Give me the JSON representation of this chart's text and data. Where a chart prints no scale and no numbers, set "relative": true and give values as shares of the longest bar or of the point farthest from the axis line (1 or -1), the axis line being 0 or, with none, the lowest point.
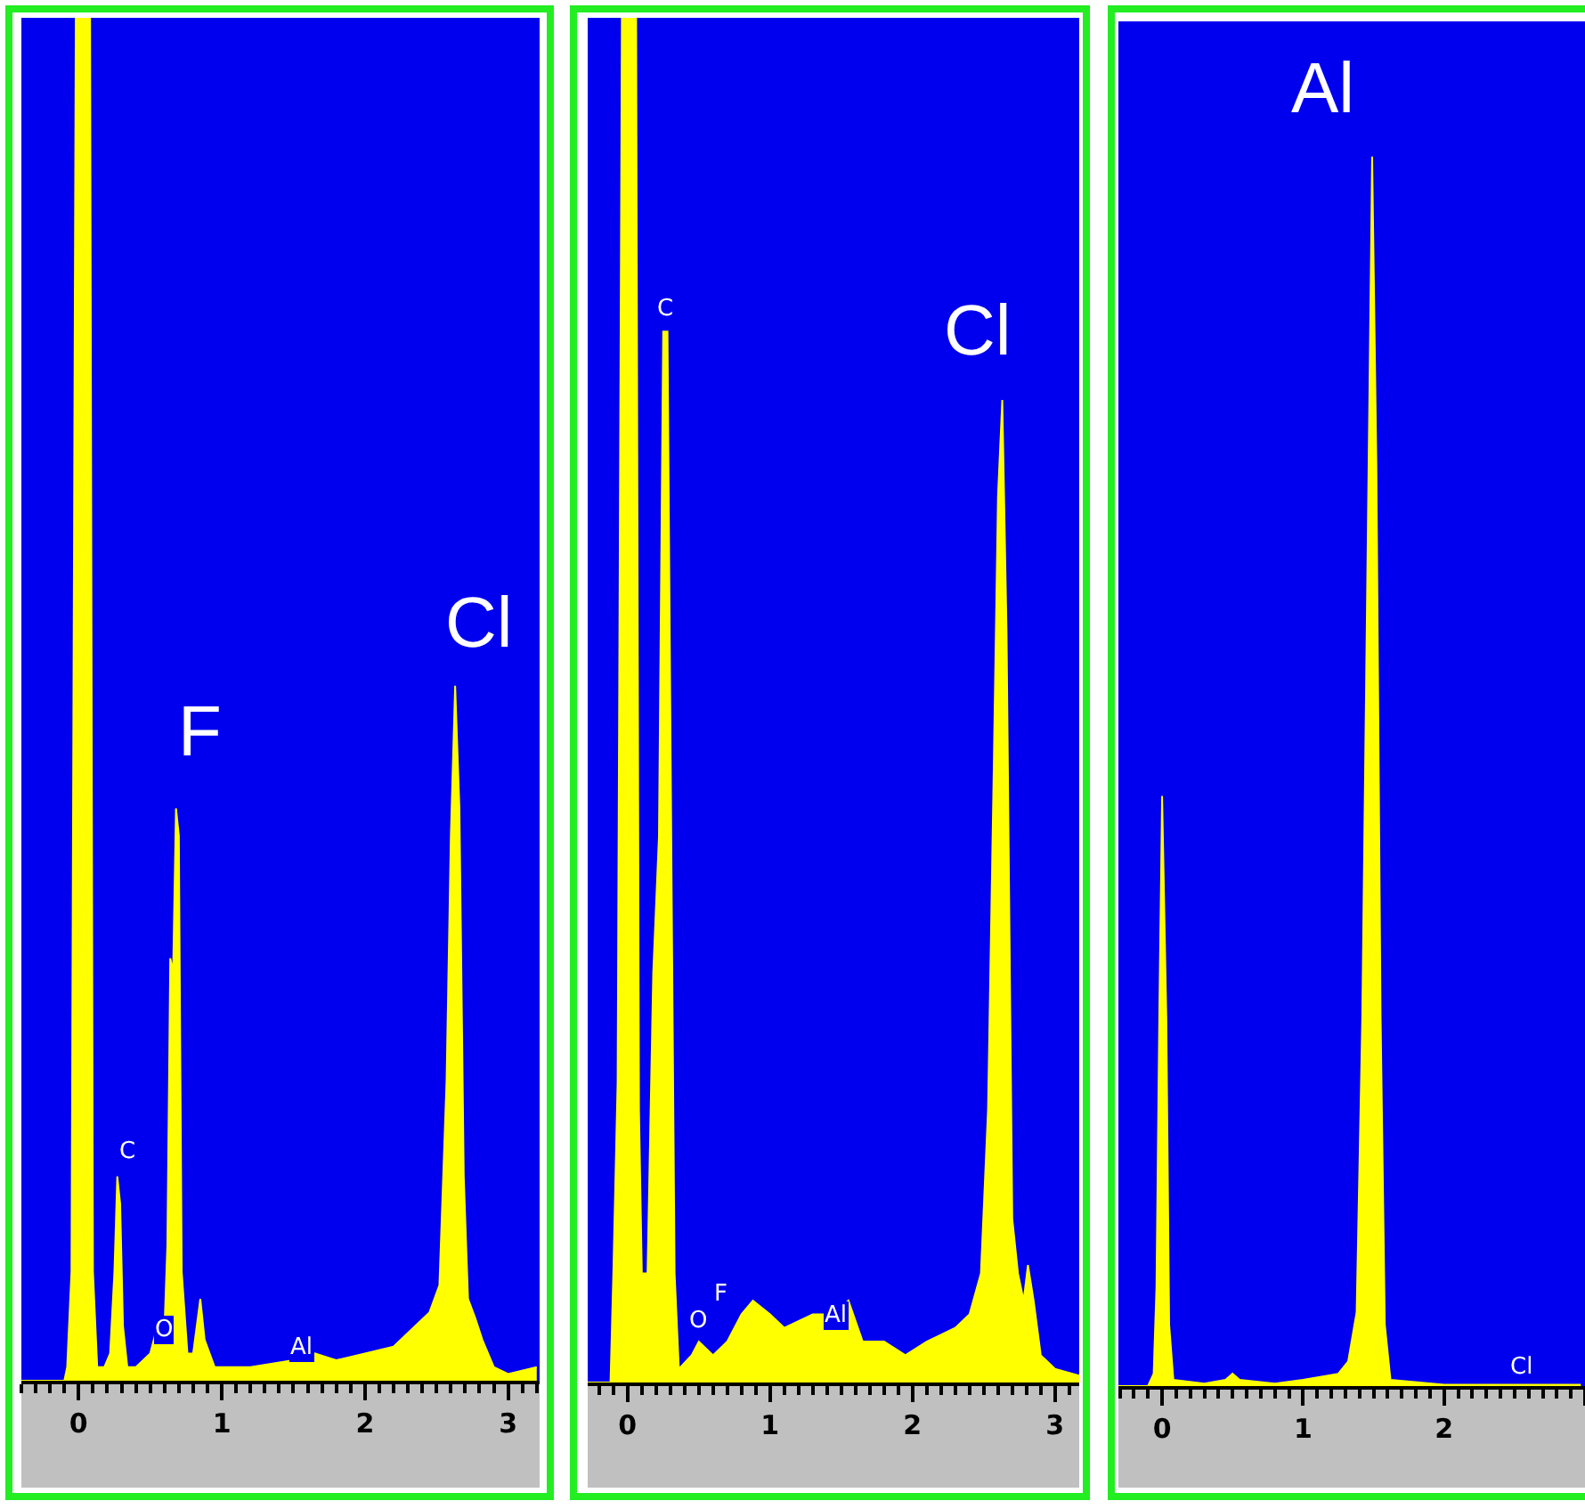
{
  "chart_data": [
    {
      "type": "area",
      "relative": true,
      "x": [
        -0.4,
        -0.1,
        -0.08,
        -0.05,
        -0.02,
        0.08,
        0.1,
        0.13,
        0.18,
        0.22,
        0.25,
        0.27,
        0.29,
        0.31,
        0.34,
        0.4,
        0.5,
        0.55,
        0.6,
        0.62,
        0.64,
        0.66,
        0.68,
        0.7,
        0.72,
        0.76,
        0.8,
        0.85,
        0.88,
        0.95,
        1.2,
        1.5,
        1.65,
        1.8,
        2.0,
        2.2,
        2.35,
        2.45,
        2.52,
        2.57,
        2.6,
        2.63,
        2.66,
        2.69,
        2.72,
        2.77,
        2.82,
        2.9,
        3.0,
        3.2
      ],
      "series": [
        {
          "color": "#ffff00",
          "values": [
            0,
            0,
            0.01,
            0.08,
            1,
            1,
            0.08,
            0.01,
            0.01,
            0.02,
            0.08,
            0.15,
            0.13,
            0.04,
            0.01,
            0.01,
            0.02,
            0.04,
            0.04,
            0.1,
            0.31,
            0.3,
            0.42,
            0.4,
            0.08,
            0.02,
            0.02,
            0.06,
            0.03,
            0.01,
            0.01,
            0.015,
            0.02,
            0.015,
            0.02,
            0.025,
            0.04,
            0.05,
            0.07,
            0.22,
            0.4,
            0.51,
            0.42,
            0.15,
            0.06,
            0.046,
            0.03,
            0.01,
            0.005,
            0.01
          ]
        }
      ],
      "xlim": [
        -0.4,
        3.22
      ],
      "xticks": [
        0,
        1,
        2,
        3
      ],
      "annotations": [
        "F",
        "Cl",
        "C",
        "O",
        "Al"
      ]
    },
    {
      "type": "area",
      "relative": true,
      "x": [
        -0.28,
        -0.12,
        -0.1,
        -0.07,
        -0.04,
        0.06,
        0.08,
        0.1,
        0.14,
        0.18,
        0.22,
        0.25,
        0.28,
        0.31,
        0.33,
        0.36,
        0.45,
        0.5,
        0.6,
        0.7,
        0.8,
        0.88,
        1.0,
        1.1,
        1.3,
        1.45,
        1.55,
        1.65,
        1.8,
        1.95,
        2.1,
        2.3,
        2.4,
        2.48,
        2.53,
        2.57,
        2.6,
        2.63,
        2.66,
        2.7,
        2.74,
        2.78,
        2.81,
        2.85,
        2.9,
        3.0,
        3.17
      ],
      "series": [
        {
          "color": "#ffff00",
          "values": [
            0,
            0,
            0.08,
            0.22,
            1,
            1,
            0.2,
            0.08,
            0.08,
            0.3,
            0.4,
            0.77,
            0.77,
            0.35,
            0.08,
            0.01,
            0.02,
            0.03,
            0.02,
            0.03,
            0.05,
            0.06,
            0.05,
            0.04,
            0.05,
            0.05,
            0.06,
            0.03,
            0.03,
            0.02,
            0.03,
            0.04,
            0.05,
            0.08,
            0.2,
            0.45,
            0.65,
            0.72,
            0.55,
            0.12,
            0.08,
            0.06,
            0.086,
            0.06,
            0.02,
            0.01,
            0.005
          ]
        }
      ],
      "xlim": [
        -0.28,
        3.17
      ],
      "xticks": [
        0,
        1,
        2,
        3
      ],
      "annotations": [
        "C",
        "Cl",
        "F",
        "O",
        "Al"
      ]
    },
    {
      "type": "area",
      "relative": true,
      "x": [
        -0.31,
        -0.1,
        -0.06,
        -0.04,
        -0.02,
        0.0,
        0.03,
        0.05,
        0.08,
        0.3,
        0.45,
        0.5,
        0.55,
        0.8,
        1.0,
        1.15,
        1.25,
        1.32,
        1.38,
        1.42,
        1.46,
        1.49,
        1.52,
        1.55,
        1.58,
        1.62,
        2.0,
        2.97
      ],
      "series": [
        {
          "color": "#ffff00",
          "values": [
            0,
            0,
            0.01,
            0.08,
            0.3,
            0.48,
            0.3,
            0.05,
            0.005,
            0.002,
            0.005,
            0.01,
            0.005,
            0.002,
            0.005,
            0.008,
            0.01,
            0.02,
            0.06,
            0.3,
            0.7,
            1,
            0.75,
            0.3,
            0.05,
            0.005,
            0.001,
            0.001
          ]
        }
      ],
      "xlim": [
        -0.31,
        3.0
      ],
      "xticks": [
        0,
        1,
        2,
        {
          "value": 3,
          "label": null
        }
      ],
      "annotations": [
        "Al",
        "Cl"
      ]
    }
  ]
}
